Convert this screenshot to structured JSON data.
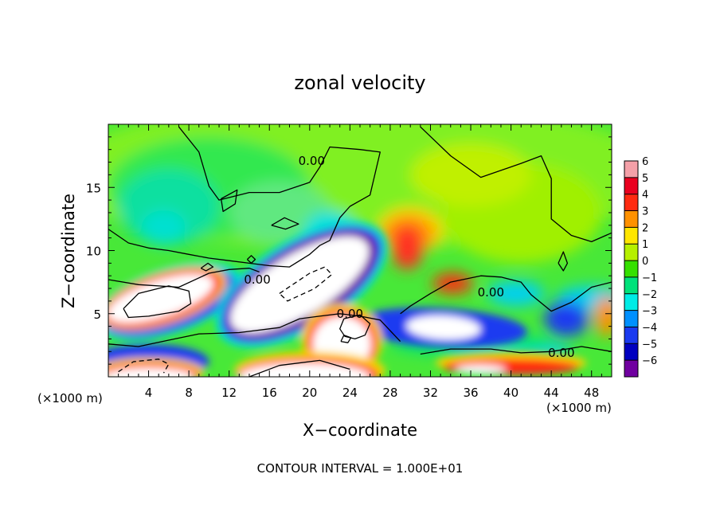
{
  "chart_data": {
    "type": "heatmap",
    "title": "zonal velocity",
    "xlabel": "X−coordinate",
    "ylabel": "Z−coordinate",
    "x_unit_left": "(×1000 m)",
    "x_unit_right": "(×1000 m)",
    "footer": "CONTOUR INTERVAL = 1.000E+01",
    "xlim": [
      0,
      50
    ],
    "ylim": [
      0,
      20
    ],
    "x_ticks": [
      4,
      8,
      12,
      16,
      20,
      24,
      28,
      32,
      36,
      40,
      44,
      48
    ],
    "y_ticks": [
      5,
      10,
      15
    ],
    "contour_labels": [
      {
        "text": "0.00",
        "x": 20.2,
        "z": 17.1
      },
      {
        "text": "0.00",
        "x": 14.8,
        "z": 7.7
      },
      {
        "text": "0.00",
        "x": 24.0,
        "z": 5.0
      },
      {
        "text": "0.00",
        "x": 38.0,
        "z": 6.7
      },
      {
        "text": "0.00",
        "x": 45.0,
        "z": 1.9
      }
    ],
    "colorbar": {
      "values": [
        6,
        5,
        4,
        3,
        2,
        1,
        0,
        -1,
        -2,
        -3,
        -4,
        -5,
        -6
      ],
      "colors": [
        "#f4a0a8",
        "#e9001f",
        "#ff2a10",
        "#ff9100",
        "#ffe600",
        "#b6f000",
        "#35e000",
        "#00e27a",
        "#00ece6",
        "#0090ff",
        "#1a3af0",
        "#0000c0",
        "#7000a0"
      ]
    },
    "field_blobs": [
      {
        "c": "#80f020",
        "x": 25,
        "z": 16,
        "rx": 30,
        "rz": 6
      },
      {
        "c": "#30e850",
        "x": 10,
        "z": 15,
        "rx": 10,
        "rz": 4
      },
      {
        "c": "#10e0a0",
        "x": 6,
        "z": 13.5,
        "rx": 5,
        "rz": 3
      },
      {
        "c": "#00e0d0",
        "x": 5.5,
        "z": 11.8,
        "rx": 2.2,
        "rz": 1.4
      },
      {
        "c": "#60e880",
        "x": 17,
        "z": 13,
        "rx": 5,
        "rz": 2.5
      },
      {
        "c": "#00e0e0",
        "x": 22,
        "z": 11.5,
        "rx": 2.5,
        "rz": 1.6
      },
      {
        "c": "#a0f000",
        "x": 41,
        "z": 13,
        "rx": 8,
        "rz": 4
      },
      {
        "c": "#c0f000",
        "x": 36,
        "z": 16,
        "rx": 6,
        "rz": 2.5
      },
      {
        "c": "#ffd400",
        "x": 30,
        "z": 11.6,
        "rx": 3.2,
        "rz": 1.8
      },
      {
        "c": "#ff9100",
        "x": 29.8,
        "z": 11.3,
        "rx": 2.6,
        "rz": 1.5
      },
      {
        "c": "#ff3020",
        "x": 29.7,
        "z": 10.3,
        "rx": 1.6,
        "rz": 1.8
      },
      {
        "c": "#ff2a10",
        "x": 34.2,
        "z": 7.4,
        "rx": 2.0,
        "rz": 0.8
      },
      {
        "c": "#00d0f0",
        "x": 40.5,
        "z": 6.6,
        "rx": 2.8,
        "rz": 1.0
      },
      {
        "c": "#00d0f0",
        "x": 48,
        "z": 6.2,
        "rx": 3.5,
        "rz": 1.0
      },
      {
        "c": "#1a3af0",
        "x": 45.5,
        "z": 4.6,
        "rx": 2.2,
        "rz": 1.4
      },
      {
        "c": "#ff9100",
        "x": 49.5,
        "z": 4.8,
        "rx": 1.2,
        "rz": 1.6
      },
      {
        "c": "#00d0f0",
        "x": 40,
        "z": 1.8,
        "rx": 6,
        "rz": 1.1
      },
      {
        "c": "#00e27a",
        "x": 36,
        "z": 2.6,
        "rx": 8,
        "rz": 0.9
      }
    ],
    "bands": [
      {
        "c": "#00e0d0",
        "x": 6,
        "z": 6,
        "rx": 7.6,
        "rz": 2.6,
        "a": 18
      },
      {
        "c": "#1a3af0",
        "x": 6,
        "z": 5.9,
        "rx": 6.9,
        "rz": 2.25,
        "a": 18
      },
      {
        "c": "#ffd400",
        "x": 5.5,
        "z": 6.2,
        "rx": 6.5,
        "rz": 2.05,
        "a": 18
      },
      {
        "c": "#ff2a10",
        "x": 5.4,
        "z": 6.2,
        "rx": 6.1,
        "rz": 1.85,
        "a": 18
      },
      {
        "c": "#ffffff",
        "x": 5.2,
        "z": 6.2,
        "rx": 5.5,
        "rz": 1.45,
        "a": 18
      },
      {
        "c": "#00e0d0",
        "x": 19.2,
        "z": 7.3,
        "rx": 9.6,
        "rz": 3.6,
        "a": 31
      },
      {
        "c": "#1a3af0",
        "x": 19.2,
        "z": 7.3,
        "rx": 9.0,
        "rz": 3.2,
        "a": 31
      },
      {
        "c": "#7000a0",
        "x": 19.2,
        "z": 7.3,
        "rx": 8.4,
        "rz": 2.9,
        "a": 31
      },
      {
        "c": "#ffffff",
        "x": 19.0,
        "z": 7.3,
        "rx": 7.8,
        "rz": 2.4,
        "a": 31
      },
      {
        "c": "#1a3af0",
        "x": 33,
        "z": 3.9,
        "rx": 8.6,
        "rz": 1.55,
        "a": -3
      },
      {
        "c": "#ffffff",
        "x": 33.3,
        "z": 3.9,
        "rx": 3.7,
        "rz": 0.95,
        "a": -3
      },
      {
        "c": "#ffd400",
        "x": 23.2,
        "z": 2.9,
        "rx": 4.0,
        "rz": 2.9,
        "a": 0
      },
      {
        "c": "#ff2a10",
        "x": 23.2,
        "z": 2.7,
        "rx": 3.5,
        "rz": 2.6,
        "a": 0
      },
      {
        "c": "#ffffff",
        "x": 23.2,
        "z": 2.6,
        "rx": 2.9,
        "rz": 2.2,
        "a": 0
      },
      {
        "c": "#ffd400",
        "x": 20,
        "z": 0.5,
        "rx": 7.5,
        "rz": 1.5,
        "a": 0
      },
      {
        "c": "#ff2a10",
        "x": 19.8,
        "z": 0.2,
        "rx": 7.0,
        "rz": 1.3,
        "a": 0
      },
      {
        "c": "#ffffff",
        "x": 19.5,
        "z": 0.0,
        "rx": 6.5,
        "rz": 1.1,
        "a": 0
      },
      {
        "c": "#1a3af0",
        "x": 4,
        "z": 1.2,
        "rx": 6,
        "rz": 1.4,
        "a": 0
      },
      {
        "c": "#ffd400",
        "x": 4,
        "z": 0.4,
        "rx": 5.5,
        "rz": 1.1,
        "a": 0
      },
      {
        "c": "#ff2a10",
        "x": 4,
        "z": 0.2,
        "rx": 5,
        "rz": 0.9,
        "a": 0
      },
      {
        "c": "#ffffff",
        "x": 4,
        "z": 0.0,
        "rx": 4.5,
        "rz": 0.7,
        "a": 0
      },
      {
        "c": "#ffd400",
        "x": 40,
        "z": 1.1,
        "rx": 7.5,
        "rz": 0.9,
        "a": 0
      },
      {
        "c": "#ff2a10",
        "x": 40,
        "z": 0.8,
        "rx": 6.8,
        "rz": 0.65,
        "a": 0
      },
      {
        "c": "#ffffff",
        "x": 37,
        "z": 0.6,
        "rx": 2.5,
        "rz": 0.35,
        "a": 0
      }
    ],
    "contours": [
      {
        "dash": false,
        "pts": [
          [
            0,
            11.7
          ],
          [
            2,
            10.6
          ],
          [
            4,
            10.2
          ],
          [
            6,
            10.0
          ],
          [
            8,
            9.7
          ],
          [
            10,
            9.4
          ],
          [
            12,
            9.2
          ],
          [
            14,
            9.0
          ],
          [
            16,
            8.8
          ],
          [
            18,
            8.7
          ],
          [
            20,
            9.7
          ],
          [
            21,
            10.4
          ],
          [
            22,
            10.8
          ],
          [
            23,
            12.6
          ],
          [
            24,
            13.5
          ],
          [
            26,
            14.4
          ],
          [
            27,
            17.8
          ],
          [
            25,
            18.0
          ],
          [
            22,
            18.2
          ],
          [
            21,
            16.6
          ],
          [
            20,
            15.4
          ],
          [
            17,
            14.6
          ],
          [
            14,
            14.6
          ],
          [
            11,
            14.0
          ],
          [
            10,
            15.1
          ],
          [
            9,
            17.8
          ],
          [
            7,
            19.8
          ]
        ]
      },
      {
        "dash": false,
        "pts": [
          [
            31,
            19.8
          ],
          [
            34,
            17.5
          ],
          [
            37,
            15.8
          ],
          [
            41,
            16.9
          ],
          [
            43,
            17.5
          ],
          [
            44,
            15.7
          ],
          [
            44,
            12.5
          ],
          [
            46,
            11.2
          ],
          [
            48,
            10.7
          ],
          [
            50,
            11.4
          ]
        ]
      },
      {
        "dash": false,
        "pts": [
          [
            0,
            7.7
          ],
          [
            3,
            7.3
          ],
          [
            7,
            7.1
          ],
          [
            10,
            8.2
          ],
          [
            12,
            8.5
          ],
          [
            14,
            8.6
          ],
          [
            15,
            8.3
          ]
        ]
      },
      {
        "dash": false,
        "pts": [
          [
            50,
            7.5
          ],
          [
            48,
            7.1
          ],
          [
            46,
            5.9
          ],
          [
            44,
            5.2
          ],
          [
            42,
            6.5
          ],
          [
            41,
            7.5
          ],
          [
            39,
            7.9
          ],
          [
            37,
            8.0
          ],
          [
            34,
            7.5
          ],
          [
            32,
            6.6
          ],
          [
            30,
            5.6
          ],
          [
            29,
            5.0
          ]
        ]
      },
      {
        "dash": false,
        "pts": [
          [
            23.4,
            4.6
          ],
          [
            23.0,
            3.8
          ],
          [
            23.5,
            3.2
          ],
          [
            24.5,
            3.0
          ],
          [
            25.5,
            3.3
          ],
          [
            26.0,
            4.2
          ],
          [
            25.0,
            4.9
          ],
          [
            23.4,
            4.6
          ]
        ]
      },
      {
        "dash": false,
        "pts": [
          [
            0,
            2.6
          ],
          [
            3,
            2.4
          ],
          [
            6,
            2.9
          ],
          [
            9,
            3.4
          ],
          [
            13,
            3.5
          ],
          [
            17,
            3.9
          ],
          [
            19,
            4.6
          ],
          [
            21,
            4.8
          ],
          [
            23,
            5.0
          ],
          [
            25,
            4.8
          ],
          [
            27,
            4.5
          ],
          [
            29,
            2.8
          ]
        ]
      },
      {
        "dash": false,
        "pts": [
          [
            31,
            1.8
          ],
          [
            34,
            2.2
          ],
          [
            38,
            2.2
          ],
          [
            41,
            1.9
          ],
          [
            44,
            2.0
          ],
          [
            47,
            2.4
          ],
          [
            50,
            2.0
          ]
        ]
      },
      {
        "dash": false,
        "pts": [
          [
            1.5,
            5.4
          ],
          [
            3,
            6.6
          ],
          [
            6,
            7.2
          ],
          [
            8,
            6.8
          ],
          [
            8.2,
            5.8
          ],
          [
            7,
            5.2
          ],
          [
            4,
            4.8
          ],
          [
            2,
            4.7
          ],
          [
            1.5,
            5.4
          ]
        ]
      },
      {
        "dash": true,
        "pts": [
          [
            17,
            6.6
          ],
          [
            18.5,
            7.4
          ],
          [
            20,
            8.2
          ],
          [
            21.5,
            8.7
          ],
          [
            22.2,
            8.1
          ],
          [
            20.5,
            7.0
          ],
          [
            17.8,
            6.0
          ],
          [
            17,
            6.6
          ]
        ]
      },
      {
        "dash": true,
        "pts": [
          [
            1,
            0.4
          ],
          [
            2.5,
            1.2
          ],
          [
            5,
            1.4
          ],
          [
            6,
            1.0
          ],
          [
            5.5,
            0.3
          ]
        ]
      },
      {
        "dash": false,
        "pts": [
          [
            14,
            0.0
          ],
          [
            17,
            0.9
          ],
          [
            21,
            1.3
          ],
          [
            24,
            0.6
          ]
        ]
      },
      {
        "dash": false,
        "pts": [
          [
            23.1,
            2.8
          ],
          [
            23.4,
            3.3
          ],
          [
            24.1,
            3.1
          ],
          [
            23.8,
            2.7
          ],
          [
            23.1,
            2.8
          ]
        ]
      },
      {
        "dash": false,
        "pts": [
          [
            11.2,
            14.1
          ],
          [
            12.8,
            14.8
          ],
          [
            12.6,
            13.7
          ],
          [
            11.4,
            13.1
          ],
          [
            11.2,
            14.1
          ]
        ]
      },
      {
        "dash": false,
        "pts": [
          [
            16.2,
            12.0
          ],
          [
            17.5,
            12.6
          ],
          [
            18.9,
            12.1
          ],
          [
            17.6,
            11.7
          ],
          [
            16.2,
            12.0
          ]
        ]
      },
      {
        "dash": false,
        "pts": [
          [
            9.2,
            8.6
          ],
          [
            9.9,
            9.0
          ],
          [
            10.4,
            8.7
          ],
          [
            9.7,
            8.4
          ],
          [
            9.2,
            8.6
          ]
        ]
      },
      {
        "dash": false,
        "pts": [
          [
            13.8,
            9.3
          ],
          [
            14.2,
            9.6
          ],
          [
            14.6,
            9.3
          ],
          [
            14.2,
            9.0
          ],
          [
            13.8,
            9.3
          ]
        ]
      },
      {
        "dash": false,
        "pts": [
          [
            44.7,
            9.0
          ],
          [
            45.2,
            9.9
          ],
          [
            45.6,
            9.0
          ],
          [
            45.2,
            8.4
          ],
          [
            44.7,
            9.0
          ]
        ]
      }
    ]
  }
}
